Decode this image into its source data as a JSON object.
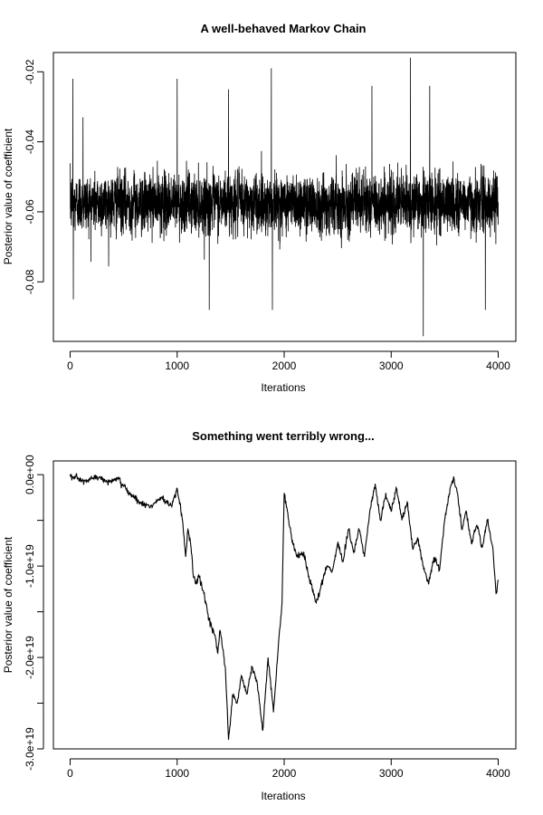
{
  "chart_data": [
    {
      "type": "line",
      "title": "A well-behaved Markov Chain",
      "xlabel": "Iterations",
      "ylabel": "Posterior value of coefficient",
      "xlim": [
        0,
        4000
      ],
      "ylim": [
        -0.097,
        -0.0145
      ],
      "x_ticks": [
        0,
        1000,
        2000,
        3000,
        4000
      ],
      "x_tick_labels": [
        "0",
        "1000",
        "2000",
        "3000",
        "4000"
      ],
      "y_ticks": [
        -0.08,
        -0.06,
        -0.04,
        -0.02
      ],
      "y_tick_labels": [
        "-0.08",
        "-0.06",
        "-0.04",
        "-0.02"
      ],
      "grid": false,
      "legend": "none",
      "series_color": "#000000",
      "series": [
        {
          "n_iterations": 4000,
          "center": -0.0575,
          "typical_band": [
            -0.068,
            -0.047
          ],
          "extremes": [
            [
              25,
              -0.022
            ],
            [
              30,
              -0.085
            ],
            [
              120,
              -0.033
            ],
            [
              1000,
              -0.022
            ],
            [
              1300,
              -0.088
            ],
            [
              1480,
              -0.025
            ],
            [
              1880,
              -0.019
            ],
            [
              1890,
              -0.088
            ],
            [
              2820,
              -0.024
            ],
            [
              3180,
              -0.016
            ],
            [
              3180,
              -0.0955
            ],
            [
              3300,
              -0.0955
            ],
            [
              3360,
              -0.024
            ],
            [
              3880,
              -0.088
            ]
          ]
        }
      ]
    },
    {
      "type": "line",
      "title": "Something went terribly wrong...",
      "xlabel": "Iterations",
      "ylabel": "Posterior value of coefficient",
      "xlim": [
        0,
        4000
      ],
      "ylim": [
        -3e+19,
        1.5e+18
      ],
      "x_ticks": [
        0,
        1000,
        2000,
        3000,
        4000
      ],
      "x_tick_labels": [
        "0",
        "1000",
        "2000",
        "3000",
        "4000"
      ],
      "y_ticks": [
        -3e+19,
        -2.5e+19,
        -2e+19,
        -1.5e+19,
        -1e+19,
        -5e+18,
        0
      ],
      "y_tick_labels": [
        "-3.0e+19",
        "",
        "-2.0e+19",
        "",
        "-1.0e+19",
        "",
        "0.0e+00"
      ],
      "grid": false,
      "legend": "none",
      "series_color": "#000000",
      "series": [
        {
          "x": [
            0,
            150,
            250,
            350,
            450,
            550,
            650,
            750,
            850,
            950,
            1000,
            1050,
            1080,
            1100,
            1130,
            1150,
            1180,
            1200,
            1250,
            1300,
            1350,
            1380,
            1400,
            1450,
            1480,
            1520,
            1560,
            1600,
            1650,
            1700,
            1750,
            1800,
            1850,
            1900,
            1950,
            1980,
            2000,
            2030,
            2070,
            2120,
            2180,
            2250,
            2300,
            2350,
            2400,
            2450,
            2500,
            2550,
            2600,
            2650,
            2700,
            2750,
            2800,
            2850,
            2900,
            2950,
            3000,
            3050,
            3100,
            3150,
            3200,
            3250,
            3300,
            3350,
            3400,
            3450,
            3500,
            3550,
            3580,
            3620,
            3660,
            3700,
            3750,
            3800,
            3850,
            3900,
            3950,
            3980,
            4000
          ],
          "y": [
            -2e+17,
            -8e+17,
            -2e+17,
            -8e+17,
            -5e+17,
            -2e+18,
            -3e+18,
            -3.5e+18,
            -2.5e+18,
            -3.5e+18,
            -1.5e+18,
            -5e+18,
            -9e+18,
            -6e+18,
            -8e+18,
            -1.1e+19,
            -1.2e+19,
            -1.1e+19,
            -1.3e+19,
            -1.6e+19,
            -1.75e+19,
            -1.95e+19,
            -1.7e+19,
            -2.1e+19,
            -2.9e+19,
            -2.4e+19,
            -2.5e+19,
            -2.2e+19,
            -2.4e+19,
            -2.1e+19,
            -2.3e+19,
            -2.8e+19,
            -2e+19,
            -2.6e+19,
            -1.8e+19,
            -1.4e+19,
            -2e+18,
            -4e+18,
            -7e+18,
            -9e+18,
            -8.5e+18,
            -1.2e+19,
            -1.4e+19,
            -1.2e+19,
            -1e+19,
            -1.05e+19,
            -7.5e+18,
            -9.5e+18,
            -6e+18,
            -8.5e+18,
            -6e+18,
            -9e+18,
            -4e+18,
            -1e+18,
            -5e+18,
            -2e+18,
            -4e+18,
            -1.5e+18,
            -5e+18,
            -3e+18,
            -8e+18,
            -7e+18,
            -1e+19,
            -1.2e+19,
            -9e+18,
            -1.05e+19,
            -5e+18,
            -1.5e+18,
            -5e+17,
            -2e+18,
            -6e+18,
            -4e+18,
            -7.5e+18,
            -5.5e+18,
            -8e+18,
            -5e+18,
            -8e+18,
            -1.3e+19,
            -1.15e+19
          ]
        }
      ]
    }
  ]
}
